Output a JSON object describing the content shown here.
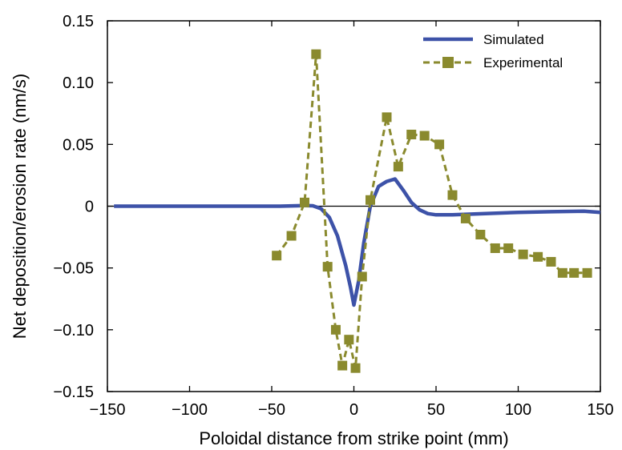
{
  "chart_data": {
    "type": "line",
    "title": "",
    "xlabel": "Poloidal distance from strike point (mm)",
    "ylabel": "Net deposition/erosion rate (nm/s)",
    "xlim": [
      -150,
      150
    ],
    "ylim": [
      -0.15,
      0.15
    ],
    "x_ticks": [
      -150,
      -100,
      -50,
      0,
      50,
      100,
      150
    ],
    "x_tick_labels": [
      "−150",
      "−100",
      "−50",
      "0",
      "50",
      "100",
      "150"
    ],
    "y_ticks": [
      0.15,
      0.1,
      0.05,
      0,
      -0.05,
      -0.1,
      -0.15
    ],
    "y_tick_labels": [
      "0.15",
      "0.10",
      "0.05",
      "0",
      "−0.05",
      "−0.10",
      "−0.15"
    ],
    "grid": false,
    "zero_line": true,
    "legend_position": "top-right",
    "series": [
      {
        "name": "Simulated",
        "color": "#3d52a8",
        "style": "solid",
        "marker": "none",
        "x": [
          -146,
          -120,
          -100,
          -80,
          -60,
          -45,
          -35,
          -30,
          -25,
          -20,
          -15,
          -10,
          -5,
          -2,
          0,
          3,
          6,
          10,
          15,
          20,
          25,
          30,
          35,
          40,
          45,
          50,
          60,
          80,
          100,
          120,
          140,
          150
        ],
        "y": [
          0,
          0,
          0,
          0,
          0,
          0,
          0.0003,
          0.0005,
          0.0003,
          -0.002,
          -0.009,
          -0.024,
          -0.048,
          -0.066,
          -0.08,
          -0.06,
          -0.03,
          0,
          0.016,
          0.02,
          0.022,
          0.013,
          0.003,
          -0.003,
          -0.006,
          -0.007,
          -0.007,
          -0.006,
          -0.005,
          -0.0045,
          -0.004,
          -0.005
        ]
      },
      {
        "name": "Experimental",
        "color": "#8a8a2e",
        "style": "dashed",
        "marker": "square",
        "x": [
          -47,
          -38,
          -30,
          -23,
          -16,
          -11,
          -7,
          -3,
          1,
          5,
          10,
          20,
          27,
          35,
          43,
          52,
          60,
          68,
          77,
          86,
          94,
          103,
          112,
          120,
          127,
          134,
          142
        ],
        "y": [
          -0.04,
          -0.024,
          0.003,
          0.123,
          -0.049,
          -0.1,
          -0.129,
          -0.108,
          -0.131,
          -0.057,
          0.005,
          0.072,
          0.032,
          0.058,
          0.057,
          0.05,
          0.009,
          -0.01,
          -0.023,
          -0.034,
          -0.034,
          -0.039,
          -0.041,
          -0.045,
          -0.054,
          -0.054,
          -0.054
        ]
      }
    ]
  }
}
